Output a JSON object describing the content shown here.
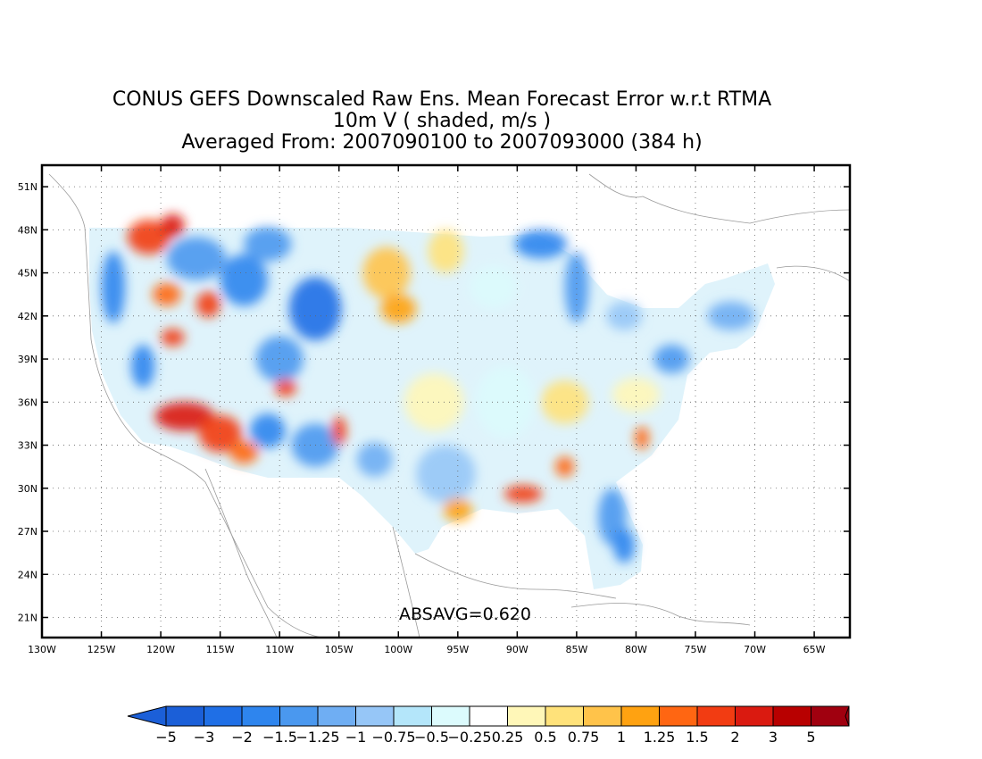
{
  "title": {
    "line1": "CONUS GEFS Downscaled Raw Ens. Mean Forecast Error w.r.t RTMA",
    "line2": "10m V ( shaded, m/s )",
    "line3": "Averaged From: 2007090100 to 2007093000 (384 h)"
  },
  "annotation": "ABSAVG=0.620",
  "axes": {
    "lat_labels": [
      "51N",
      "48N",
      "45N",
      "42N",
      "39N",
      "36N",
      "33N",
      "30N",
      "27N",
      "24N",
      "21N"
    ],
    "lat_values": [
      51,
      48,
      45,
      42,
      39,
      36,
      33,
      30,
      27,
      24,
      21
    ],
    "lon_labels": [
      "130W",
      "125W",
      "120W",
      "115W",
      "110W",
      "105W",
      "100W",
      "95W",
      "90W",
      "85W",
      "80W",
      "75W",
      "70W",
      "65W"
    ],
    "lon_values": [
      -130,
      -125,
      -120,
      -115,
      -110,
      -105,
      -100,
      -95,
      -90,
      -85,
      -80,
      -75,
      -70,
      -65
    ],
    "lon_range": [
      -130,
      -62
    ],
    "lat_range": [
      19.6,
      52.5
    ],
    "grid": "dotted"
  },
  "colorbar": {
    "labels": [
      "-5",
      "-3",
      "-2",
      "-1.5",
      "-1.25",
      "-1",
      "-0.75",
      "-0.5",
      "-0.25",
      "0.25",
      "0.5",
      "0.75",
      "1",
      "1.25",
      "1.5",
      "2",
      "3",
      "5"
    ],
    "colors": [
      "#1b5fd8",
      "#1f6fe6",
      "#2e85ee",
      "#4a98ef",
      "#6faef3",
      "#96c6f7",
      "#b4e6fa",
      "#dcfbfd",
      "#ffffff",
      "#fff7b8",
      "#ffe27a",
      "#ffc34a",
      "#ffa211",
      "#ff6612",
      "#f23c12",
      "#da1a10",
      "#b80000",
      "#a0000f"
    ],
    "low_arrow_color": "#1b5fd8",
    "high_arrow_color": "#a0000f"
  },
  "field_patches": [
    {
      "lon": -124,
      "lat": 44,
      "rx": 1.0,
      "ry": 2.5,
      "color": "#2e85ee"
    },
    {
      "lon": -121,
      "lat": 47.5,
      "rx": 1.8,
      "ry": 1.2,
      "color": "#f23c12"
    },
    {
      "lon": -119,
      "lat": 48.3,
      "rx": 1.0,
      "ry": 0.8,
      "color": "#da1a10"
    },
    {
      "lon": -117,
      "lat": 46,
      "rx": 2.5,
      "ry": 1.5,
      "color": "#4a98ef"
    },
    {
      "lon": -119.5,
      "lat": 43.5,
      "rx": 1.2,
      "ry": 0.8,
      "color": "#ff6612"
    },
    {
      "lon": -116,
      "lat": 42.8,
      "rx": 1.0,
      "ry": 0.9,
      "color": "#f23c12"
    },
    {
      "lon": -113,
      "lat": 44.5,
      "rx": 2.0,
      "ry": 1.8,
      "color": "#2e85ee"
    },
    {
      "lon": -111,
      "lat": 47,
      "rx": 2.0,
      "ry": 1.2,
      "color": "#4a98ef"
    },
    {
      "lon": -107,
      "lat": 42.5,
      "rx": 2.2,
      "ry": 2.2,
      "color": "#1f6fe6"
    },
    {
      "lon": -110,
      "lat": 39,
      "rx": 2.0,
      "ry": 1.6,
      "color": "#4a98ef"
    },
    {
      "lon": -109.5,
      "lat": 37,
      "rx": 0.9,
      "ry": 0.6,
      "color": "#f23c12"
    },
    {
      "lon": -119,
      "lat": 40.5,
      "rx": 1.0,
      "ry": 0.6,
      "color": "#f23c12"
    },
    {
      "lon": -121.5,
      "lat": 38.5,
      "rx": 1.0,
      "ry": 1.5,
      "color": "#2e85ee"
    },
    {
      "lon": -118,
      "lat": 35,
      "rx": 2.5,
      "ry": 1.0,
      "color": "#da1a10"
    },
    {
      "lon": -115,
      "lat": 33.8,
      "rx": 1.8,
      "ry": 1.3,
      "color": "#f23c12"
    },
    {
      "lon": -113,
      "lat": 32.5,
      "rx": 1.2,
      "ry": 0.8,
      "color": "#ff6612"
    },
    {
      "lon": -111,
      "lat": 34,
      "rx": 1.5,
      "ry": 1.2,
      "color": "#2e85ee"
    },
    {
      "lon": -107,
      "lat": 33,
      "rx": 2.0,
      "ry": 1.5,
      "color": "#4a98ef"
    },
    {
      "lon": -105,
      "lat": 34,
      "rx": 0.6,
      "ry": 1.0,
      "color": "#f23c12"
    },
    {
      "lon": -101,
      "lat": 45,
      "rx": 2.0,
      "ry": 1.8,
      "color": "#ffc34a"
    },
    {
      "lon": -100,
      "lat": 42.5,
      "rx": 1.5,
      "ry": 1.0,
      "color": "#ffa211"
    },
    {
      "lon": -96,
      "lat": 46.5,
      "rx": 1.5,
      "ry": 1.5,
      "color": "#ffe27a"
    },
    {
      "lon": -92,
      "lat": 44,
      "rx": 2.0,
      "ry": 1.5,
      "color": "#dcfbfd"
    },
    {
      "lon": -85,
      "lat": 44,
      "rx": 1.0,
      "ry": 2.5,
      "color": "#4a98ef"
    },
    {
      "lon": -88,
      "lat": 47,
      "rx": 2.2,
      "ry": 1.0,
      "color": "#2e85ee"
    },
    {
      "lon": -81,
      "lat": 42,
      "rx": 1.5,
      "ry": 1.0,
      "color": "#96c6f7"
    },
    {
      "lon": -97,
      "lat": 36,
      "rx": 2.5,
      "ry": 2.0,
      "color": "#fff7b8"
    },
    {
      "lon": -91,
      "lat": 36,
      "rx": 2.5,
      "ry": 2.5,
      "color": "#dcfbfd"
    },
    {
      "lon": -86,
      "lat": 36,
      "rx": 2.0,
      "ry": 1.5,
      "color": "#ffe27a"
    },
    {
      "lon": -80,
      "lat": 36.5,
      "rx": 2.0,
      "ry": 1.2,
      "color": "#fff7b8"
    },
    {
      "lon": -77,
      "lat": 39,
      "rx": 1.5,
      "ry": 1.0,
      "color": "#4a98ef"
    },
    {
      "lon": -72,
      "lat": 42,
      "rx": 2.0,
      "ry": 1.0,
      "color": "#6faef3"
    },
    {
      "lon": -96,
      "lat": 31,
      "rx": 2.5,
      "ry": 2.0,
      "color": "#96c6f7"
    },
    {
      "lon": -95,
      "lat": 28.5,
      "rx": 1.2,
      "ry": 0.8,
      "color": "#ffa211"
    },
    {
      "lon": -89.5,
      "lat": 29.6,
      "rx": 1.6,
      "ry": 0.6,
      "color": "#f23c12"
    },
    {
      "lon": -86,
      "lat": 31.5,
      "rx": 0.8,
      "ry": 0.7,
      "color": "#ff6612"
    },
    {
      "lon": -82,
      "lat": 28,
      "rx": 1.2,
      "ry": 2.0,
      "color": "#4a98ef"
    },
    {
      "lon": -81,
      "lat": 26,
      "rx": 0.9,
      "ry": 1.2,
      "color": "#2e85ee"
    },
    {
      "lon": -79.5,
      "lat": 33.5,
      "rx": 0.6,
      "ry": 0.8,
      "color": "#ff6612"
    },
    {
      "lon": -102,
      "lat": 32,
      "rx": 1.5,
      "ry": 1.2,
      "color": "#6faef3"
    }
  ]
}
